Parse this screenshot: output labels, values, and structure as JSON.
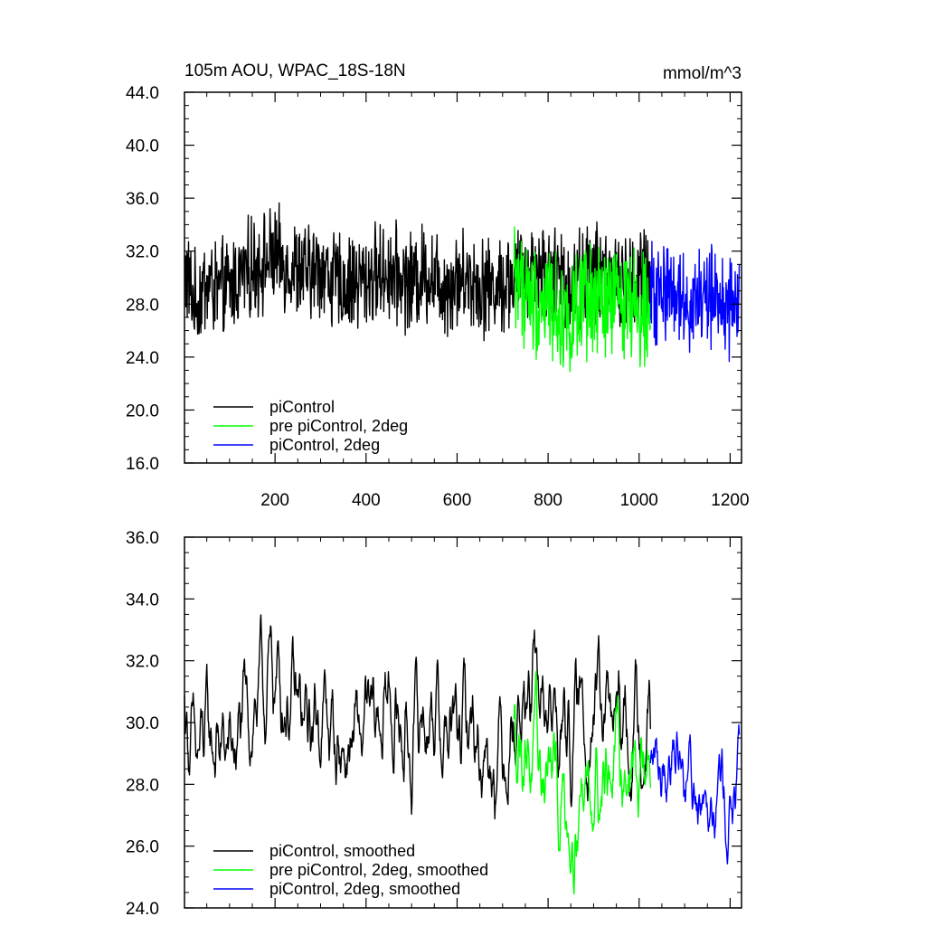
{
  "chart_data": [
    {
      "type": "line",
      "title": "105m AOU, WPAC_18S-18N",
      "units": "mmol/m^3",
      "xlabel": "",
      "ylabel": "",
      "xlim": [
        1,
        1225
      ],
      "ylim": [
        16,
        44
      ],
      "xticks": [
        200,
        400,
        600,
        800,
        1000,
        1200
      ],
      "xtick_labels": [
        "200",
        "400",
        "600",
        "800",
        "1000",
        "1200"
      ],
      "yticks": [
        16,
        20,
        24,
        28,
        32,
        36,
        40,
        44
      ],
      "ytick_labels": [
        "16.0",
        "20.0",
        "24.0",
        "28.0",
        "32.0",
        "36.0",
        "40.0",
        "44.0"
      ],
      "grid": false,
      "legend_position": "bottom-left",
      "series": [
        {
          "name": "piControl",
          "color": "#000000",
          "x": [
            1,
            25,
            50,
            75,
            100,
            125,
            150,
            175,
            200,
            225,
            250,
            275,
            300,
            325,
            350,
            375,
            400,
            425,
            450,
            475,
            500,
            525,
            550,
            575,
            600,
            625,
            650,
            675,
            700,
            725,
            750,
            775,
            800,
            825,
            850,
            875,
            900,
            925,
            950,
            975,
            1000,
            1025
          ],
          "y": [
            30.5,
            28.0,
            29.6,
            28.9,
            29.2,
            30.1,
            30.8,
            31.2,
            31.5,
            31.0,
            30.6,
            30.2,
            30.9,
            29.8,
            29.4,
            29.7,
            29.9,
            30.3,
            30.5,
            30.0,
            29.6,
            30.4,
            30.2,
            29.4,
            29.8,
            30.0,
            29.5,
            29.3,
            29.5,
            30.0,
            30.4,
            30.8,
            30.5,
            29.9,
            29.7,
            30.1,
            30.6,
            30.2,
            29.6,
            29.4,
            29.8,
            30.3
          ],
          "amplitude": 3.6
        },
        {
          "name": "pre piControl, 2deg",
          "color": "#00ff00",
          "x": [
            725,
            750,
            775,
            800,
            825,
            850,
            875,
            900,
            925,
            950,
            975,
            1000,
            1025
          ],
          "y": [
            30.5,
            29.0,
            28.0,
            28.5,
            27.3,
            26.8,
            27.6,
            28.0,
            27.9,
            28.2,
            28.8,
            27.5,
            28.9
          ],
          "amplitude": 4.2
        },
        {
          "name": "piControl, 2deg",
          "color": "#0000ff",
          "x": [
            1025,
            1050,
            1075,
            1100,
            1125,
            1150,
            1175,
            1200,
            1220
          ],
          "y": [
            28.5,
            29.0,
            29.5,
            28.3,
            28.1,
            28.6,
            28.4,
            27.6,
            27.8
          ],
          "amplitude": 3.7
        }
      ],
      "legend": [
        "piControl",
        "pre piControl, 2deg",
        "piControl, 2deg"
      ]
    },
    {
      "type": "line",
      "title": "",
      "xlabel": "",
      "ylabel": "",
      "xlim": [
        1,
        1225
      ],
      "ylim": [
        24,
        36
      ],
      "xticks": [
        200,
        400,
        600,
        800,
        1000,
        1200
      ],
      "xtick_labels": [],
      "yticks": [
        24,
        26,
        28,
        30,
        32,
        34,
        36
      ],
      "ytick_labels": [
        "24.0",
        "26.0",
        "28.0",
        "30.0",
        "32.0",
        "34.0",
        "36.0"
      ],
      "grid": false,
      "legend_position": "bottom-left",
      "series": [
        {
          "name": "piControl, smoothed",
          "color": "#000000",
          "x": [
            1,
            25,
            50,
            75,
            100,
            125,
            150,
            175,
            200,
            225,
            250,
            275,
            300,
            325,
            350,
            375,
            400,
            425,
            450,
            475,
            500,
            525,
            550,
            575,
            600,
            625,
            650,
            675,
            700,
            725,
            750,
            775,
            800,
            825,
            850,
            875,
            900,
            925,
            950,
            975,
            1000,
            1025
          ],
          "y": [
            30.6,
            28.4,
            29.6,
            29.2,
            29.0,
            29.6,
            30.5,
            30.9,
            31.6,
            30.9,
            30.2,
            29.6,
            30.5,
            29.6,
            29.0,
            29.4,
            29.6,
            30.0,
            30.7,
            29.8,
            29.2,
            30.4,
            30.4,
            29.6,
            29.5,
            30.2,
            29.3,
            29.0,
            29.4,
            30.2,
            30.3,
            31.0,
            30.4,
            29.8,
            29.6,
            30.2,
            30.5,
            30.2,
            29.8,
            29.6,
            30.0,
            30.4
          ],
          "amplitude": 1.5
        },
        {
          "name": "pre piControl, 2deg, smoothed",
          "color": "#00ff00",
          "x": [
            725,
            750,
            775,
            800,
            825,
            850,
            875,
            900,
            925,
            950,
            975,
            1000,
            1025
          ],
          "y": [
            29.8,
            29.6,
            28.2,
            28.6,
            27.4,
            27.0,
            27.8,
            28.5,
            28.2,
            28.6,
            29.0,
            27.9,
            28.9
          ],
          "amplitude": 1.5
        },
        {
          "name": "piControl, 2deg, smoothed",
          "color": "#0000ff",
          "x": [
            1025,
            1050,
            1075,
            1100,
            1125,
            1150,
            1175,
            1200,
            1220
          ],
          "y": [
            28.4,
            28.8,
            29.6,
            28.4,
            28.0,
            28.4,
            28.2,
            27.2,
            27.6
          ],
          "amplitude": 1.3
        }
      ],
      "legend": [
        "piControl, smoothed",
        "pre piControl, 2deg, smoothed",
        "piControl, 2deg, smoothed"
      ]
    }
  ]
}
